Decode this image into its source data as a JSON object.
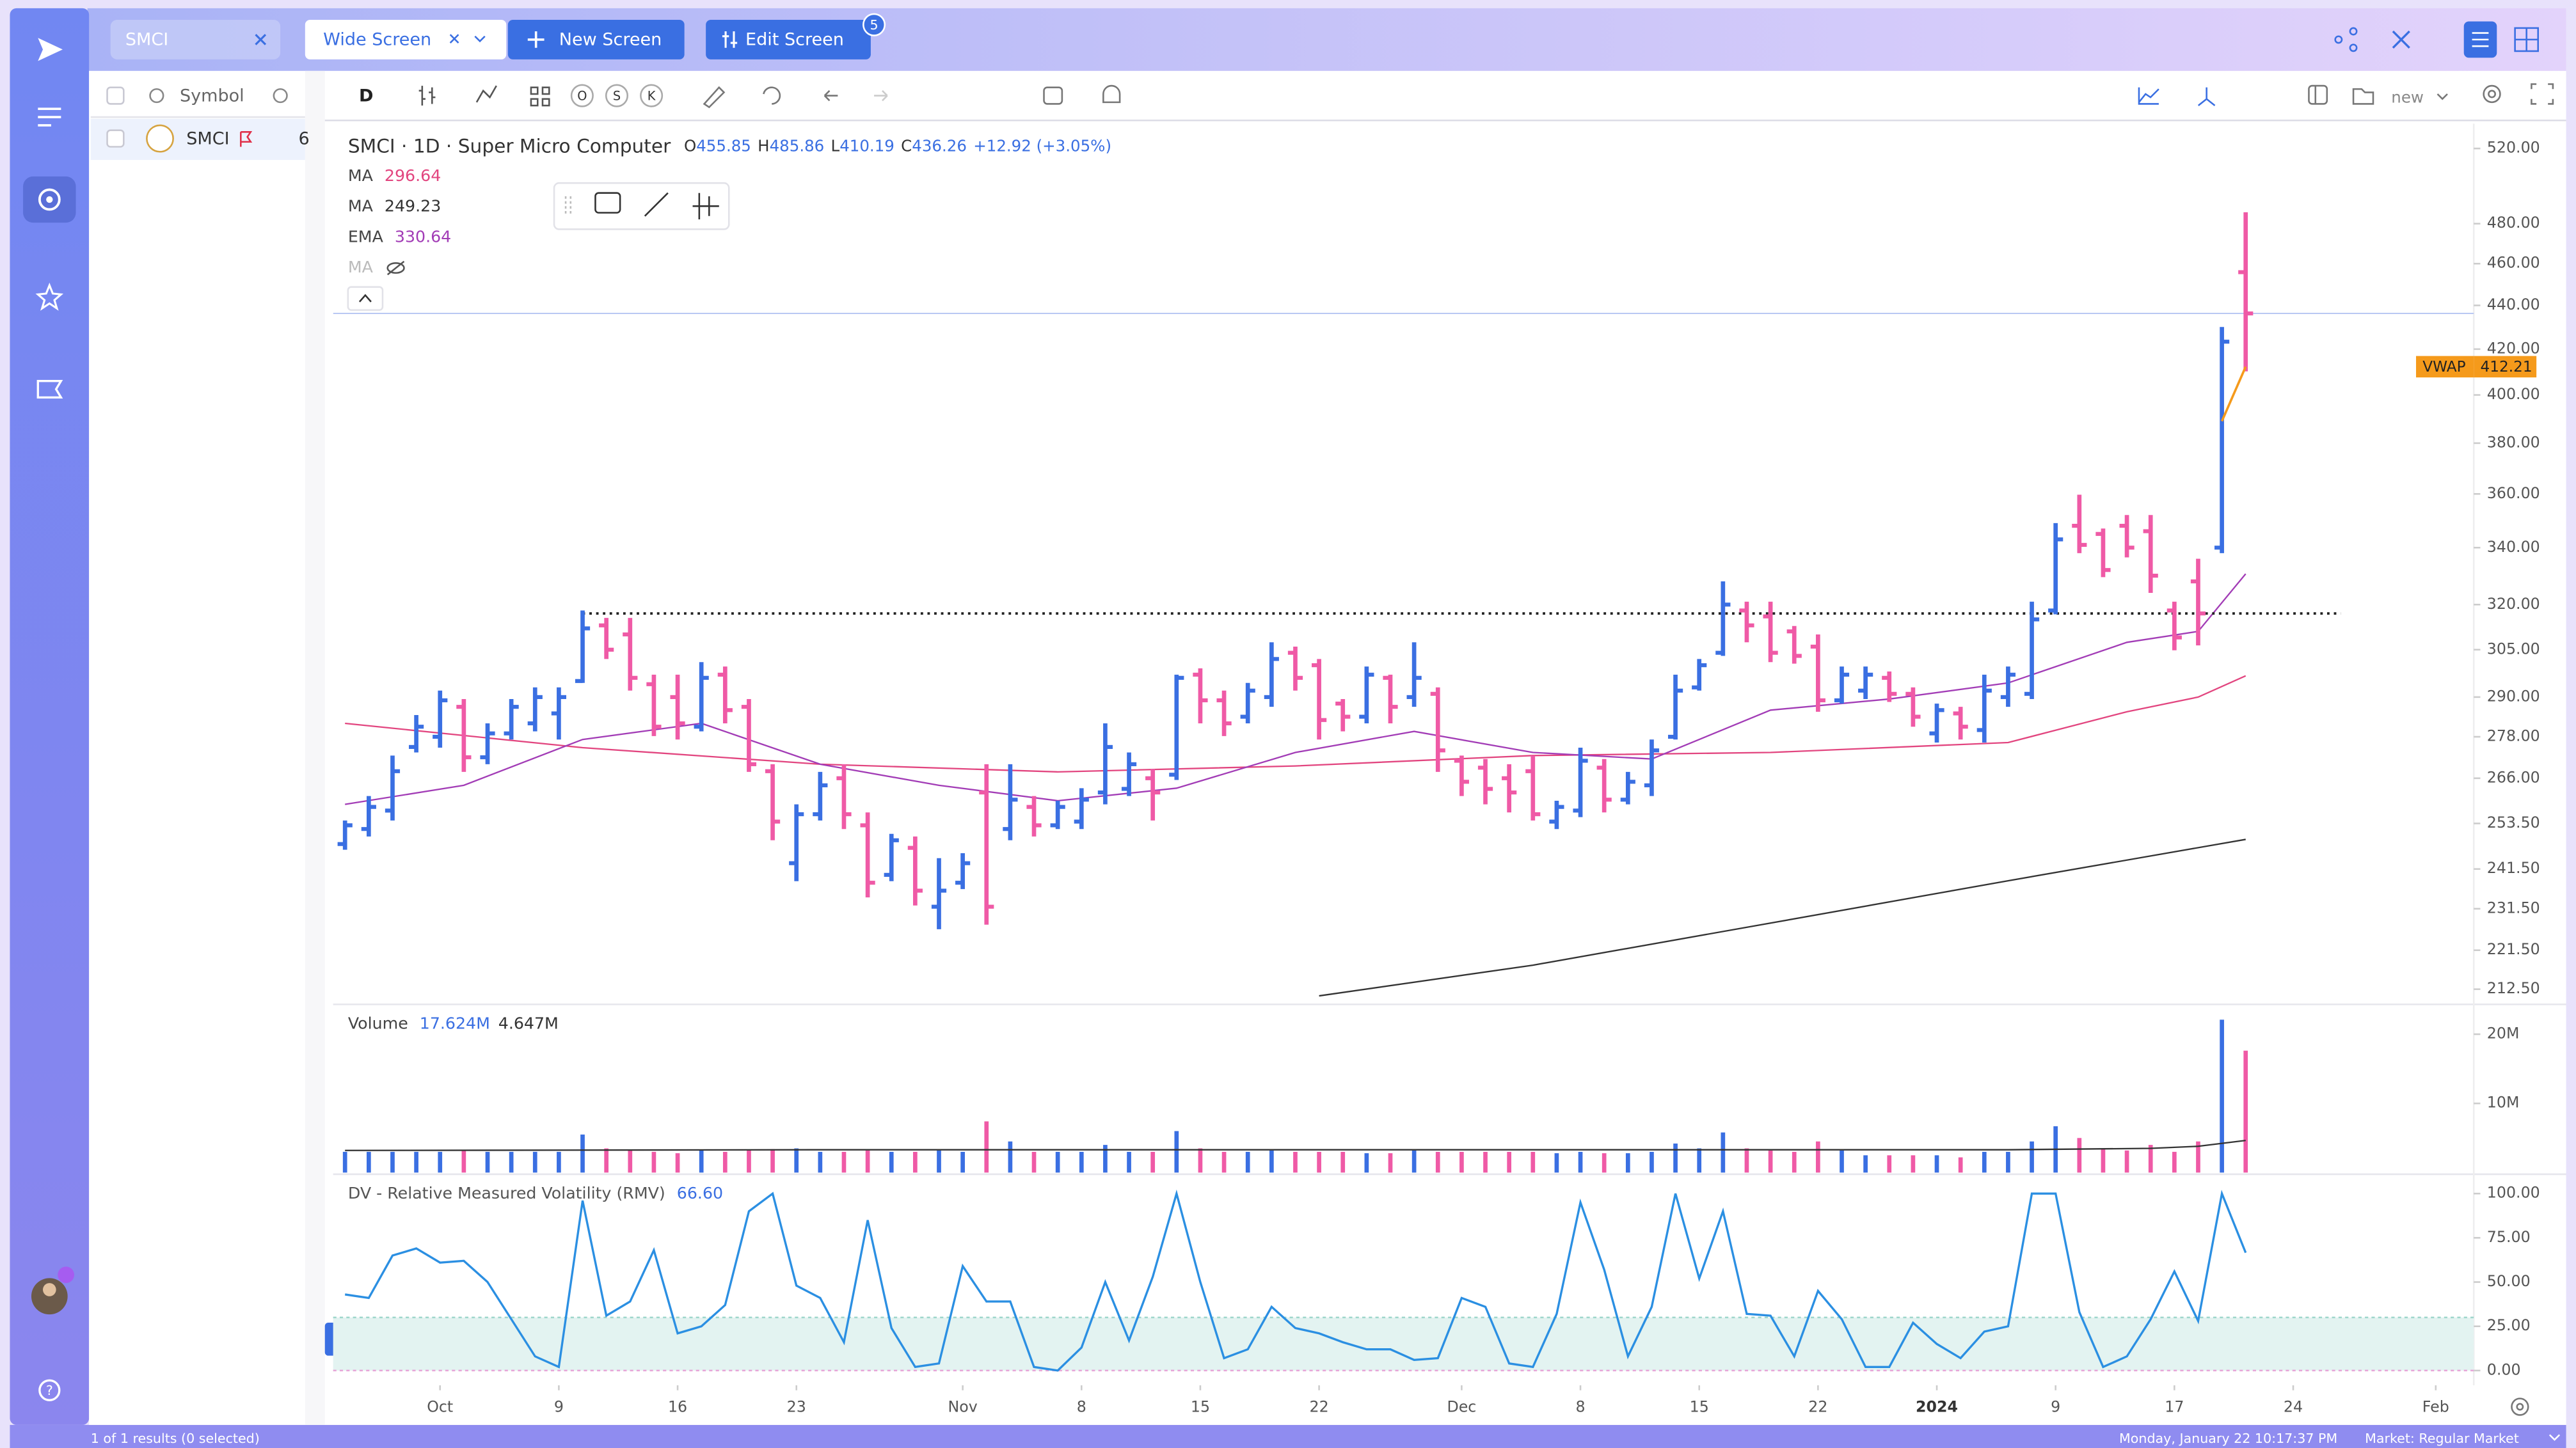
{
  "app": {
    "tab": "SMCI",
    "screen": "Wide Screen",
    "new_screen": "New Screen",
    "edit_screen": "Edit Screen",
    "edit_badge": "5",
    "watchlist": {
      "header": "Symbol",
      "rows": [
        {
          "symbol": "SMCI",
          "extra": "6"
        }
      ]
    },
    "toolbar": {
      "interval": "D",
      "buttons": [
        "O",
        "S",
        "K"
      ],
      "layout": "new"
    },
    "footer": {
      "results": "1 of 1 results (0 selected)",
      "datetime": "Monday, January 22 10:17:37 PM",
      "market": "Market: Regular Market"
    }
  },
  "chart_data": [
    {
      "type": "ohlc",
      "title": "SMCI · 1D · Super Micro Computer",
      "ohlc_labels": [
        "O",
        "H",
        "L",
        "C"
      ],
      "change": "+12.92 (+3.05%)",
      "log_scale": true,
      "up_color": "#3a6fe2",
      "down_color": "#ef5aa6",
      "open": [
        248,
        252,
        257,
        275,
        278,
        287,
        272,
        279,
        282,
        285,
        295,
        313,
        310,
        294,
        290,
        281,
        297,
        287,
        268,
        243,
        256,
        266,
        253,
        240,
        247,
        232,
        238,
        262,
        252,
        258,
        253,
        254,
        262,
        263,
        266,
        267,
        297,
        289,
        284,
        290,
        304,
        300,
        288,
        284,
        296,
        290,
        291,
        271,
        269,
        266,
        268,
        254,
        257,
        269,
        260,
        264,
        278,
        293,
        304,
        318,
        316,
        311,
        306,
        289,
        292,
        296,
        291,
        279,
        285,
        280,
        290,
        291,
        318,
        348,
        345,
        348,
        346,
        318,
        328,
        340,
        455.85
      ],
      "high": [
        254.3,
        261,
        272.5,
        284.5,
        292,
        289.4,
        282,
        289.4,
        293,
        293,
        318,
        315.5,
        315.5,
        297,
        297,
        301,
        299.6,
        289.4,
        270,
        258.7,
        267.8,
        270,
        256.5,
        250.7,
        250,
        244.3,
        245.6,
        270,
        270,
        261,
        259.7,
        263.2,
        282,
        273.4,
        268.6,
        297,
        299,
        292,
        294.4,
        307.4,
        306,
        302,
        289.4,
        299.6,
        297,
        307.4,
        293,
        272.5,
        271.5,
        270,
        272.5,
        259.7,
        274.8,
        271.5,
        267.8,
        277.2,
        297,
        302,
        328,
        321,
        321,
        312.8,
        310,
        299.6,
        299.6,
        298,
        293,
        288,
        287,
        297,
        299.6,
        321,
        349,
        359.7,
        347,
        352,
        352,
        321,
        336,
        430,
        485.86
      ],
      "low": [
        246.5,
        250,
        254.3,
        273.4,
        274.8,
        267.8,
        270,
        277.2,
        279.6,
        277.2,
        294.4,
        302,
        292,
        278.2,
        277.2,
        279.6,
        282,
        267.8,
        249,
        238.4,
        254.3,
        252,
        234.3,
        238.4,
        232.3,
        226.5,
        236.4,
        227.6,
        249,
        250,
        252,
        252,
        258.7,
        261,
        254.3,
        265.5,
        282,
        278.2,
        282,
        287,
        292,
        277.2,
        279.6,
        282,
        282,
        287,
        267.8,
        261,
        258.7,
        256.5,
        254.3,
        252,
        255.2,
        256.5,
        258.7,
        261,
        277.2,
        292,
        303,
        307.4,
        301,
        300.5,
        285.5,
        288,
        289.4,
        288.5,
        281,
        276.3,
        277.2,
        276.3,
        287,
        289.4,
        316.7,
        338,
        329.5,
        336.5,
        324,
        304.8,
        306.4,
        338,
        410.19
      ],
      "close": [
        253,
        258,
        268,
        281,
        289,
        272,
        279,
        287,
        290,
        290,
        312,
        305,
        296,
        281,
        282,
        296,
        286,
        270,
        254,
        256,
        264,
        256,
        238,
        249,
        236,
        236,
        243,
        232,
        260,
        253,
        258,
        260,
        275,
        270,
        262,
        296,
        289,
        282,
        292,
        302,
        296,
        283,
        284,
        297,
        287,
        296,
        274,
        265,
        263,
        262,
        256,
        258,
        271,
        260,
        265,
        274,
        292,
        300,
        320,
        313,
        304,
        303,
        289,
        297,
        297,
        291,
        284,
        286,
        281,
        292,
        297,
        315,
        343,
        341,
        332,
        340,
        330,
        309,
        317,
        423.34,
        436.26
      ],
      "xlim": [
        -0.5,
        89.6
      ],
      "ylim": [
        210.2,
        533.9
      ],
      "yticks": [
        {
          "value": 212.5,
          "label": "212.50"
        },
        {
          "value": 221.5,
          "label": "221.50"
        },
        {
          "value": 231.5,
          "label": "231.50"
        },
        {
          "value": 241.5,
          "label": "241.50"
        },
        {
          "value": 253.5,
          "label": "253.50"
        },
        {
          "value": 266,
          "label": "266.00"
        },
        {
          "value": 278,
          "label": "278.00"
        },
        {
          "value": 290,
          "label": "290.00"
        },
        {
          "value": 305,
          "label": "305.00"
        },
        {
          "value": 320,
          "label": "320.00"
        },
        {
          "value": 340,
          "label": "340.00"
        },
        {
          "value": 360,
          "label": "360.00"
        },
        {
          "value": 380,
          "label": "380.00"
        },
        {
          "value": 400,
          "label": "400.00"
        },
        {
          "value": 420,
          "label": "420.00"
        },
        {
          "value": 440,
          "label": "440.00"
        },
        {
          "value": 460,
          "label": "460.00"
        },
        {
          "value": 480,
          "label": "480.00"
        },
        {
          "value": 520,
          "label": "520.00"
        }
      ],
      "indicators": [
        {
          "name": "MA",
          "color": "#e2457f",
          "x": [
            0,
            10,
            20,
            30,
            40,
            50,
            60,
            70,
            75,
            78,
            80
          ],
          "values": [
            282,
            274.8,
            270,
            267.8,
            269.5,
            272.5,
            273.4,
            276.3,
            285.5,
            290,
            296.64
          ]
        },
        {
          "name": "MA",
          "color": "#333333",
          "x": [
            41,
            50,
            60,
            70,
            80
          ],
          "values": [
            211,
            218,
            228,
            238.5,
            249.23
          ]
        },
        {
          "name": "EMA",
          "color": "#a23cb6",
          "x": [
            0,
            5,
            10,
            15,
            20,
            25,
            30,
            35,
            40,
            45,
            50,
            55,
            60,
            65,
            70,
            75,
            78,
            80
          ],
          "values": [
            258.7,
            264,
            277.2,
            282,
            270,
            264,
            259.7,
            263.2,
            273.4,
            279.6,
            273.4,
            271.5,
            286,
            289.4,
            294.4,
            307.4,
            311,
            330.64
          ]
        },
        {
          "name": "MA",
          "color": "#bbbbbb",
          "hidden": true
        }
      ],
      "level": {
        "value": 317,
        "x": [
          10,
          84
        ]
      },
      "vwap": {
        "name": "VWAP",
        "color": "#f59a1b",
        "x": [
          79,
          80
        ],
        "values": [
          389,
          412.21
        ]
      }
    },
    {
      "type": "bar",
      "title": "Volume",
      "legend_labels": [
        "17.624M",
        "4.647M"
      ],
      "values": [
        3,
        3,
        3,
        3,
        3,
        3.2,
        3,
        3,
        3,
        3,
        5.5,
        3.5,
        3.2,
        3,
        2.8,
        3.2,
        3,
        3.2,
        3.4,
        3.5,
        3,
        3,
        3.2,
        3,
        3,
        3.2,
        3,
        7.4,
        4.5,
        3,
        3,
        3,
        4,
        3,
        3,
        6,
        3.5,
        3,
        3,
        3.2,
        3,
        3,
        3,
        2.8,
        2.8,
        3.2,
        3,
        3,
        3,
        3,
        3,
        2.8,
        3,
        2.8,
        2.8,
        3,
        4.2,
        3.5,
        5.8,
        3.5,
        3.2,
        3,
        4.5,
        3.2,
        2.5,
        2.5,
        2.5,
        2.5,
        2.2,
        3,
        3,
        4.5,
        6.7,
        5,
        3.5,
        3.2,
        4,
        3,
        4.5,
        22.1,
        17.624
      ],
      "xlim": [
        -0.5,
        89.6
      ],
      "ylim": [
        0,
        23.6
      ],
      "yticks": [
        {
          "value": 10,
          "label": "10M"
        },
        {
          "value": 20,
          "label": "20M"
        }
      ],
      "average": {
        "color": "#333333",
        "x": [
          0,
          20,
          40,
          60,
          70,
          76,
          78,
          80
        ],
        "values": [
          3.2,
          3.3,
          3.3,
          3.3,
          3.3,
          3.5,
          3.8,
          4.647
        ]
      }
    },
    {
      "type": "line",
      "title": "DV - Relative Measured Volatility (RMV)",
      "value_label": "66.60",
      "color": "#2b8fe2",
      "values": [
        43,
        41,
        65,
        69,
        61,
        62,
        50,
        29,
        8,
        2,
        96,
        31,
        39,
        68,
        21,
        25,
        37,
        90,
        100,
        48,
        41,
        16,
        85,
        24,
        2,
        4,
        59,
        39,
        39,
        2,
        0,
        13,
        50,
        17,
        53,
        100,
        50,
        7,
        12,
        36,
        24,
        21,
        16,
        12,
        12,
        6,
        7,
        41,
        36,
        4,
        2,
        32,
        95,
        57,
        8,
        36,
        100,
        52,
        90,
        32,
        31,
        8,
        45,
        29,
        2,
        2,
        27,
        15,
        7,
        22,
        25,
        100,
        100,
        33,
        2,
        8,
        29,
        56,
        28,
        100,
        66.6
      ],
      "zone": [
        0,
        30
      ],
      "xlim": [
        -0.5,
        89.6
      ],
      "ylim": [
        -6.5,
        110
      ],
      "yticks": [
        {
          "value": 0,
          "label": "0.00"
        },
        {
          "value": 25,
          "label": "25.00"
        },
        {
          "value": 50,
          "label": "50.00"
        },
        {
          "value": 75,
          "label": "75.00"
        },
        {
          "value": 100,
          "label": "100.00"
        }
      ],
      "xticks": [
        {
          "value": 4,
          "label": "Oct"
        },
        {
          "value": 9,
          "label": "9"
        },
        {
          "value": 14,
          "label": "16"
        },
        {
          "value": 19,
          "label": "23"
        },
        {
          "value": 26,
          "label": "Nov"
        },
        {
          "value": 31,
          "label": "8"
        },
        {
          "value": 36,
          "label": "15"
        },
        {
          "value": 41,
          "label": "22"
        },
        {
          "value": 47,
          "label": "Dec"
        },
        {
          "value": 52,
          "label": "8"
        },
        {
          "value": 57,
          "label": "15"
        },
        {
          "value": 62,
          "label": "22"
        },
        {
          "value": 67,
          "label": "2024"
        },
        {
          "value": 72,
          "label": "9"
        },
        {
          "value": 77,
          "label": "17"
        },
        {
          "value": 82,
          "label": "24"
        },
        {
          "value": 88,
          "label": "Feb"
        }
      ]
    }
  ]
}
